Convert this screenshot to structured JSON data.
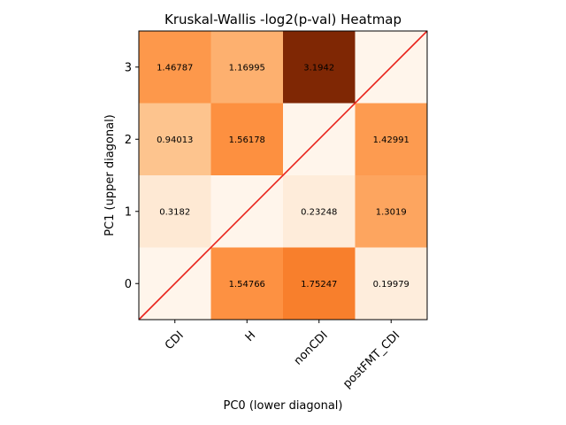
{
  "chart_data": {
    "type": "heatmap",
    "title": "Kruskal-Wallis -log2(p-val) Heatmap",
    "xlabel": "PC0 (lower diagonal)",
    "ylabel": "PC1 (upper diagonal)",
    "x_categories": [
      "CDI",
      "H",
      "nonCDI",
      "postFMT_CDI"
    ],
    "y_ticks": [
      "0",
      "1",
      "2",
      "3"
    ],
    "colormap": "Oranges",
    "vmin": 0,
    "vmax": 3.1942,
    "diagonal_line_color": "#e8231c",
    "rows": [
      {
        "y": "3",
        "values": [
          1.46787,
          1.16995,
          3.1942,
          null
        ],
        "labels": [
          "1.46787",
          "1.16995",
          "3.1942",
          ""
        ]
      },
      {
        "y": "2",
        "values": [
          0.94013,
          1.56178,
          null,
          1.42991
        ],
        "labels": [
          "0.94013",
          "1.56178",
          "",
          "1.42991"
        ]
      },
      {
        "y": "1",
        "values": [
          0.3182,
          null,
          0.23248,
          1.3019
        ],
        "labels": [
          "0.3182",
          "",
          "0.23248",
          "1.3019"
        ]
      },
      {
        "y": "0",
        "values": [
          null,
          1.54766,
          1.75247,
          0.19979
        ],
        "labels": [
          "",
          "1.54766",
          "1.75247",
          "0.19979"
        ]
      }
    ]
  }
}
